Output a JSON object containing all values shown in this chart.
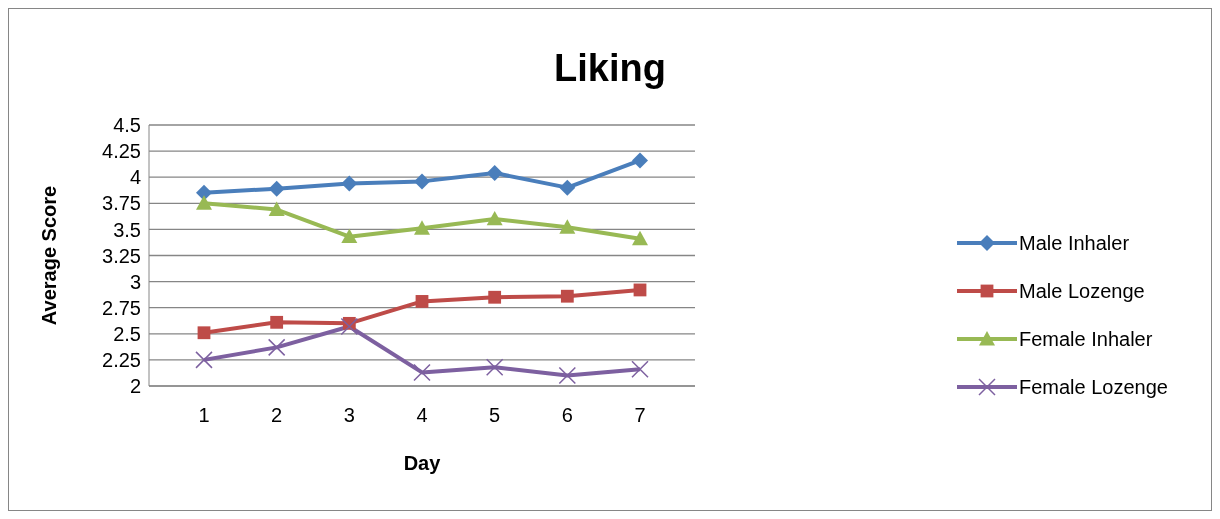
{
  "chart_data": {
    "type": "line",
    "title": "Liking",
    "xlabel": "Day",
    "ylabel": "Average Score",
    "categories": [
      "1",
      "2",
      "3",
      "4",
      "5",
      "6",
      "7"
    ],
    "ylim": [
      2,
      4.5
    ],
    "yticks": [
      2,
      2.25,
      2.5,
      2.75,
      3,
      3.25,
      3.5,
      3.75,
      4,
      4.25,
      4.5
    ],
    "grid": "y",
    "legend": "right",
    "line_style": "solid",
    "series": [
      {
        "name": "Male Inhaler",
        "color": "#4a7ebb",
        "marker": "diamond",
        "values": [
          3.85,
          3.89,
          3.94,
          3.96,
          4.04,
          3.9,
          4.16
        ]
      },
      {
        "name": "Male Lozenge",
        "color": "#be4b48",
        "marker": "square",
        "values": [
          2.51,
          2.61,
          2.6,
          2.81,
          2.85,
          2.86,
          2.92
        ]
      },
      {
        "name": "Female Inhaler",
        "color": "#98b954",
        "marker": "triangle",
        "values": [
          3.75,
          3.69,
          3.43,
          3.51,
          3.6,
          3.52,
          3.41
        ]
      },
      {
        "name": "Female Lozenge",
        "color": "#7d60a0",
        "marker": "cross",
        "values": [
          2.25,
          2.37,
          2.57,
          2.13,
          2.18,
          2.1,
          2.16
        ]
      }
    ]
  }
}
